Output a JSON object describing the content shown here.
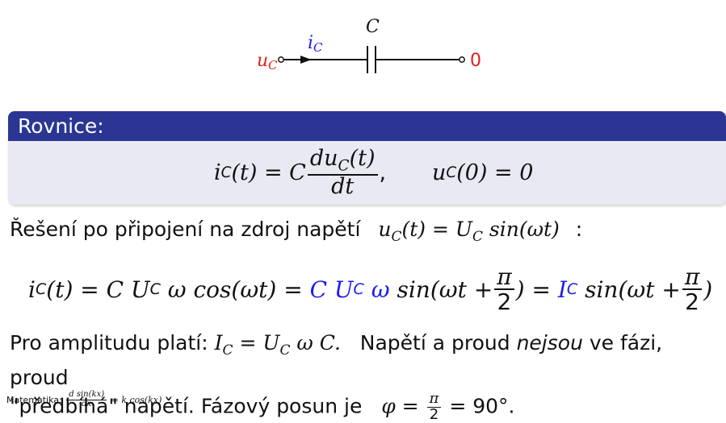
{
  "circuit": {
    "left_label": "u",
    "left_label_sub": "C",
    "current_label": "i",
    "current_label_sub": "C",
    "component_label": "C",
    "right_label": "0",
    "colors": {
      "voltage": "#e0201a",
      "current": "#1c1cf0"
    }
  },
  "block": {
    "title": "Rovnice:",
    "header_color": "#2b3694",
    "body_color": "#e9e9f3",
    "eq_lhs": "i",
    "eq_lhs_sub": "C",
    "eq_lhs_arg": "(t) = C",
    "eq_frac_num": "du",
    "eq_frac_num_sub": "C",
    "eq_frac_num_arg": "(t)",
    "eq_frac_den": "dt",
    "eq_frac_tail": ",",
    "eq_init": "u",
    "eq_init_sub": "C",
    "eq_init_arg": "(0) = 0"
  },
  "solution": {
    "intro": "Řešení po připojení na zdroj napětí",
    "source_lhs": "u",
    "source_lhs_sub": "C",
    "source_rhs": "(t) = U",
    "source_rhs_sub": "C",
    "source_tail": "sin(ωt)",
    "colon": ":"
  },
  "equation2": {
    "p1": "i",
    "p1_sub": "C",
    "p2": "(t) = C U",
    "p2_sub": "C",
    "p3": "ω cos(ωt) =",
    "p4_blue": "C U",
    "p4_sub": "C",
    "p5_blue": "ω",
    "p6": "sin(ωt +",
    "frac_num": "π",
    "frac_den": "2",
    "p7": ") =",
    "p8_blue": "I",
    "p8_sub": "C",
    "p9": "sin(ωt +",
    "p10": ")"
  },
  "paragraph": {
    "t1": "Pro amplitudu platí:",
    "m1": "I",
    "m1_sub": "C",
    "m2": "= U",
    "m2_sub": "C",
    "m3": "ω C.",
    "t2": "Napětí a proud",
    "t2_em": "nejsou",
    "t3": "ve fázi, proud",
    "t4": "\"předbíhá\" napětí. Fázový posun je",
    "phi": "φ =",
    "frac_num": "π",
    "frac_den": "2",
    "tail": "= 90°."
  },
  "note": {
    "label": "Matematika:",
    "frac_num": "d sin(kx)",
    "frac_den": "dx",
    "rhs": "= k cos(kx)"
  }
}
